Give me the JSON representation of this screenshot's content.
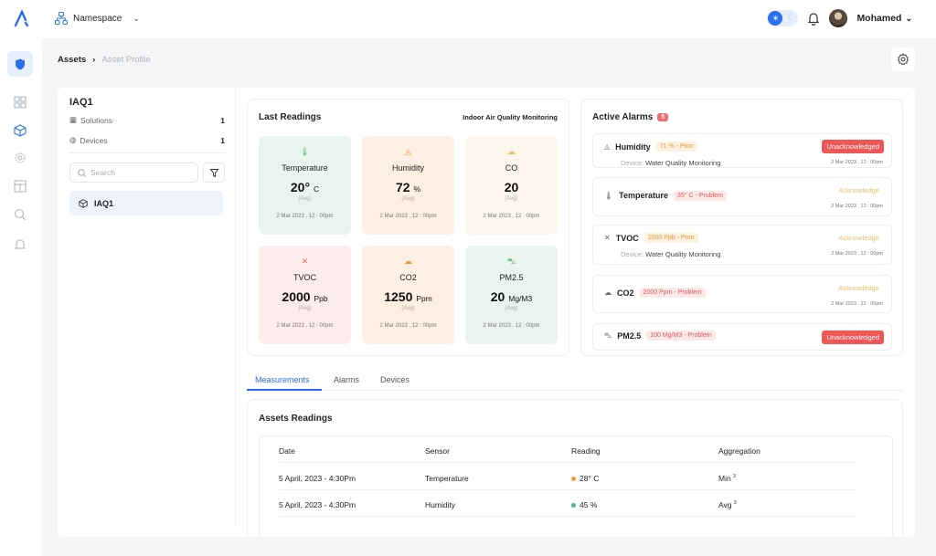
{
  "header": {
    "namespace_label": "Namespace",
    "user_name": "Mohamed"
  },
  "breadcrumb": {
    "parent": "Assets",
    "current": "Asset Profile"
  },
  "asset": {
    "name": "IAQ1",
    "solutions_label": "Solutions",
    "solutions_count": "1",
    "devices_label": "Devices",
    "devices_count": "1",
    "search_placeholder": "Search",
    "tree_item": "IAQ1"
  },
  "last_readings": {
    "title": "Last Readings",
    "subtitle": "Indoor Air Quality Monitoring",
    "tiles": [
      {
        "name": "Temperature",
        "value": "20°",
        "unit": "C",
        "avg": "(Avg)",
        "date": "2 Mar 2023 , 12 : 00pm",
        "bg": "#eaf4ef",
        "icon_color": "#5fb38a"
      },
      {
        "name": "Humidity",
        "value": "72",
        "unit": "%",
        "avg": "(Avg)",
        "date": "2 Mar 2023 , 12 : 00pm",
        "bg": "#fdf0e3",
        "icon_color": "#e69a3a"
      },
      {
        "name": "CO",
        "value": "20",
        "unit": "",
        "avg": "(Avg)",
        "date": "2 Mar 2023 , 12 : 00pm",
        "bg": "#fcf6ec",
        "icon_color": "#e8c06a"
      },
      {
        "name": "TVOC",
        "value": "2000",
        "unit": "Ppb",
        "avg": "(Avg)",
        "date": "2 Mar 2023 , 12 : 00pm",
        "bg": "#fdecec",
        "icon_color": "#ef6b6b"
      },
      {
        "name": "CO2",
        "value": "1250",
        "unit": "Ppm",
        "avg": "(Avg)",
        "date": "2 Mar 2023 , 12 : 00pm",
        "bg": "#fdf0e3",
        "icon_color": "#e69a3a"
      },
      {
        "name": "PM2.5",
        "value": "20",
        "unit": "Mg/M3",
        "avg": "(Avg)",
        "date": "2 Mar 2023 , 12 : 00pm",
        "bg": "#eaf4ef",
        "icon_color": "#5fb38a"
      }
    ]
  },
  "active_alarms": {
    "title": "Active Alarms",
    "count": "5",
    "device_prefix": "Device:",
    "items": [
      {
        "name": "Humidity",
        "tag": "71 % - Poor",
        "tag_type": "poor",
        "device": "Water Quality Monitoring",
        "status": "Unacknowledged",
        "status_type": "unack",
        "date": "2 Mar 2023 , 12 : 00pm"
      },
      {
        "name": "Temperature",
        "tag": "35° C - Problem",
        "tag_type": "problem",
        "device": "",
        "status": "Acknowledge",
        "status_type": "ack",
        "date": "2 Mar 2023 , 12 : 00pm"
      },
      {
        "name": "TVOC",
        "tag": "1000 Ppb - Poor",
        "tag_type": "poor",
        "device": "Water Quality Monitoring",
        "status": "Acknowledge",
        "status_type": "ack",
        "date": "2 Mar 2023 , 12 : 00pm"
      },
      {
        "name": "CO2",
        "tag": "2000 Ppm - Problem",
        "tag_type": "problem",
        "device": "",
        "status": "Acknowledge",
        "status_type": "ack",
        "date": "2 Mar 2023 , 12 : 00pm"
      },
      {
        "name": "PM2.5",
        "tag": "100 Mg/M3 - Problem",
        "tag_type": "problem",
        "device": "",
        "status": "Unacknowledged",
        "status_type": "unack",
        "date": ""
      }
    ]
  },
  "tabs": [
    "Measurements",
    "Alarms",
    "Devices"
  ],
  "assets_readings": {
    "title": "Assets Readings",
    "columns": [
      "Date",
      "Sensor",
      "Reading",
      "Aggregation"
    ],
    "rows": [
      {
        "date": "5 April, 2023 - 4:30Pm",
        "sensor": "Temperature",
        "reading": "28° C",
        "dot": "#f0a030",
        "aggregation": "Min",
        "agg_sup": "3"
      },
      {
        "date": "5 April, 2023 - 4:30Pm",
        "sensor": "Humidity",
        "reading": "45 %",
        "dot": "#4cb88a",
        "aggregation": "Avg",
        "agg_sup": "3"
      }
    ]
  },
  "colors": {
    "accent": "#2a6ff0",
    "danger": "#ef5757",
    "warning": "#e69a3a"
  }
}
